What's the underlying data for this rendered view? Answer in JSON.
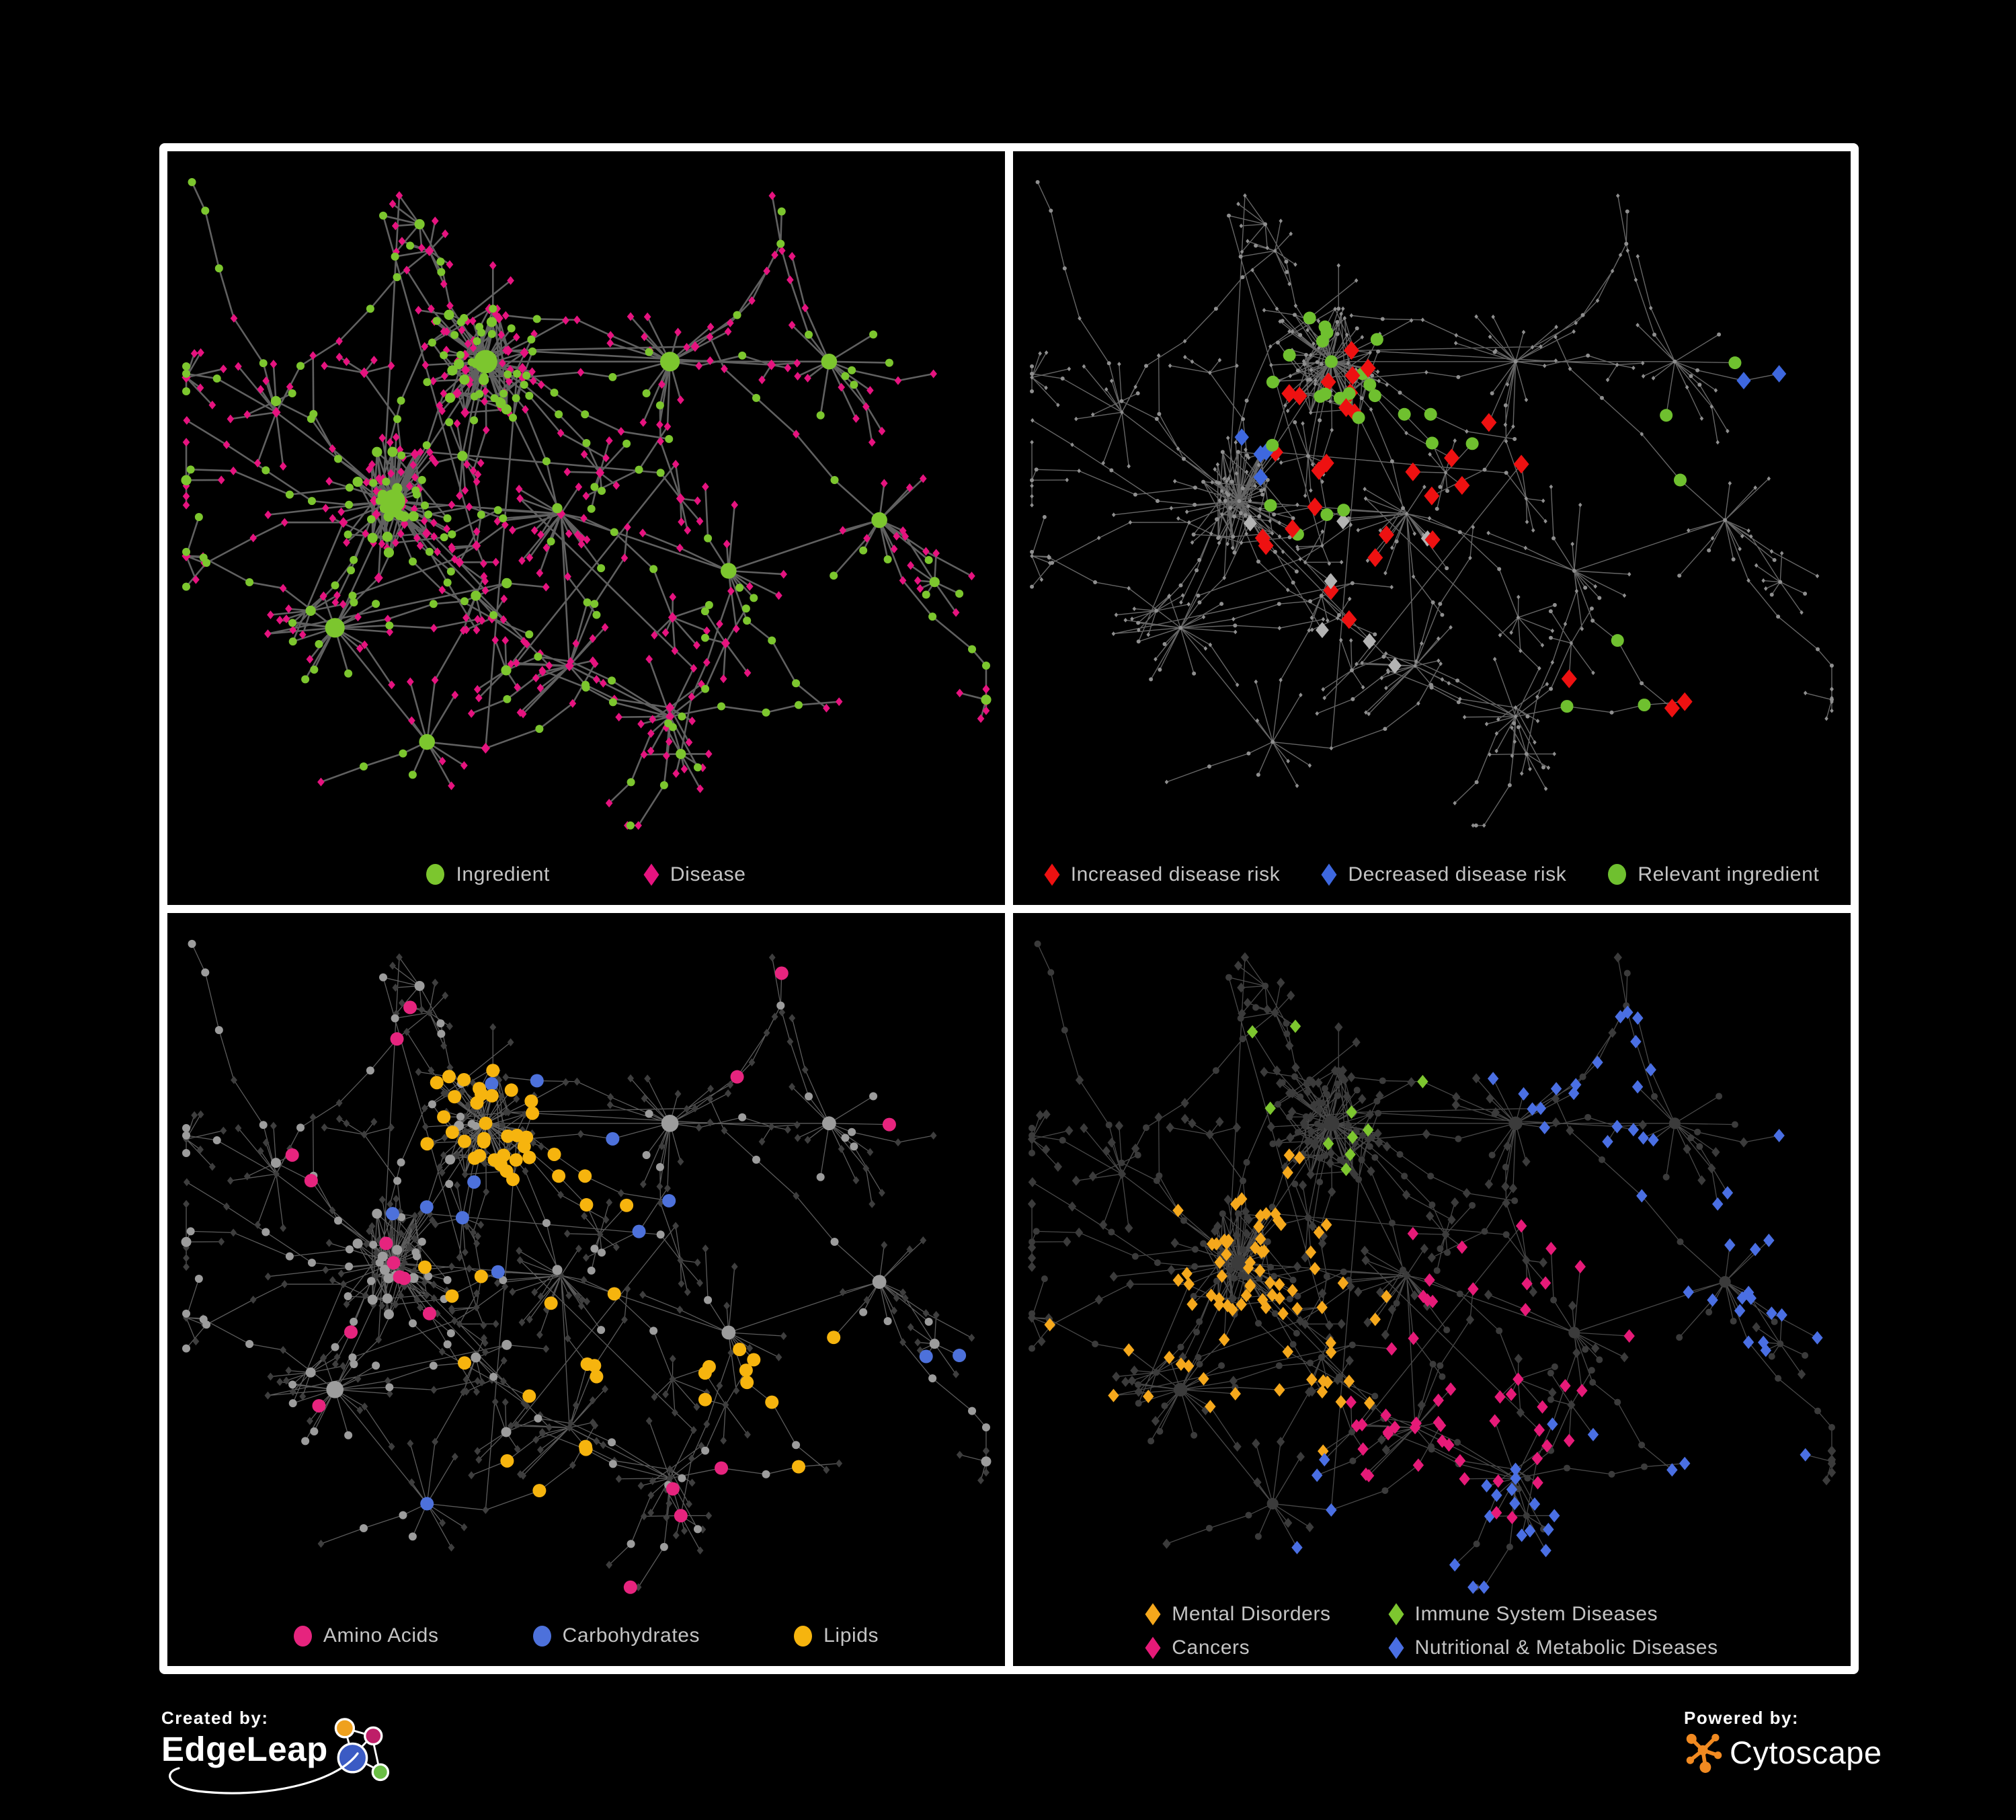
{
  "page": {
    "background": "#000000",
    "frame_color": "#FFFFFF"
  },
  "panels": [
    {
      "key": "overview",
      "legend": [
        {
          "label": "Ingredient",
          "shape": "circle",
          "color": "#7CC62E"
        },
        {
          "label": "Disease",
          "shape": "diamond",
          "color": "#E6137F"
        }
      ],
      "style": {
        "edge_color": "#6A6A6A",
        "edge_width": 2.6,
        "edge_opacity": 0.9,
        "ingredient_color": "#7CC62E",
        "disease_color": "#E6137F"
      }
    },
    {
      "key": "risk",
      "legend": [
        {
          "label": "Increased disease risk",
          "shape": "diamond",
          "color": "#EE1111"
        },
        {
          "label": "Decreased disease risk",
          "shape": "diamond",
          "color": "#3E68DF"
        },
        {
          "label": "Relevant ingredient",
          "shape": "circle",
          "color": "#6FC02F"
        }
      ],
      "style": {
        "edge_color": "#7E7E7E",
        "edge_width": 1.4,
        "edge_opacity": 0.8,
        "base_color": "#8F8F8F",
        "highlights": {
          "increased": {
            "color": "#EE1111",
            "count": 30
          },
          "decreased": {
            "color": "#3E68DF",
            "count": 6
          },
          "unchanged": {
            "color": "#B3B3B3",
            "count": 7
          },
          "ingredient": {
            "color": "#6FC02F",
            "count": 32
          }
        }
      }
    },
    {
      "key": "classes",
      "legend": [
        {
          "label": "Amino Acids",
          "shape": "circle",
          "color": "#E6247E"
        },
        {
          "label": "Carbohydrates",
          "shape": "circle",
          "color": "#4D71DB"
        },
        {
          "label": "Lipids",
          "shape": "circle",
          "color": "#F6B40E"
        }
      ],
      "style": {
        "edge_color": "#8C8C8C",
        "edge_width": 1.3,
        "edge_opacity": 0.65,
        "ingredient_color": "#9C9C9C",
        "disease_color": "#3E3E3E",
        "highlights": {
          "amino": {
            "color": "#E6247E",
            "count": 18
          },
          "carbo": {
            "color": "#4D71DB",
            "count": 13
          },
          "lipid": {
            "color": "#F6B40E",
            "count": 62
          }
        }
      }
    },
    {
      "key": "categories",
      "legend": [
        {
          "label": "Mental Disorders",
          "shape": "diamond",
          "color": "#F5A81C"
        },
        {
          "label": "Immune System Diseases",
          "shape": "diamond",
          "color": "#7DC62F"
        },
        {
          "label": "Cancers",
          "shape": "diamond",
          "color": "#E61A78"
        },
        {
          "label": "Nutritional & Metabolic Diseases",
          "shape": "diamond",
          "color": "#4A6FE3"
        }
      ],
      "style": {
        "edge_color": "#6F6F6F",
        "edge_width": 1.3,
        "edge_opacity": 0.65,
        "base_color": "#3B3B3B",
        "highlights": {
          "mental": {
            "color": "#F5A81C",
            "count": 80
          },
          "immune": {
            "color": "#7DC62F",
            "count": 10
          },
          "cancer": {
            "color": "#E61A78",
            "count": 52
          },
          "nutritional": {
            "color": "#4A6FE3",
            "count": 64
          }
        }
      }
    }
  ],
  "network": {
    "seed": 1337,
    "burst_large": 27,
    "burst_medium": 17,
    "burst_small": 10,
    "chain_prob": 0.32,
    "subburst_prob": 0.38,
    "dense_members": 34,
    "dense_extra_edges": 22,
    "cross_links": 16
  },
  "footer": {
    "created_by": {
      "label": "Created by:",
      "brand": "EdgeLeap"
    },
    "powered_by": {
      "label": "Powered by:",
      "brand": "Cytoscape"
    },
    "edgeleap_colors": {
      "yellow": "#EFA11E",
      "magenta": "#BE1E68",
      "blue": "#3B5BC4",
      "green": "#6ABE45"
    },
    "cytoscape_orange": "#F18A21"
  }
}
